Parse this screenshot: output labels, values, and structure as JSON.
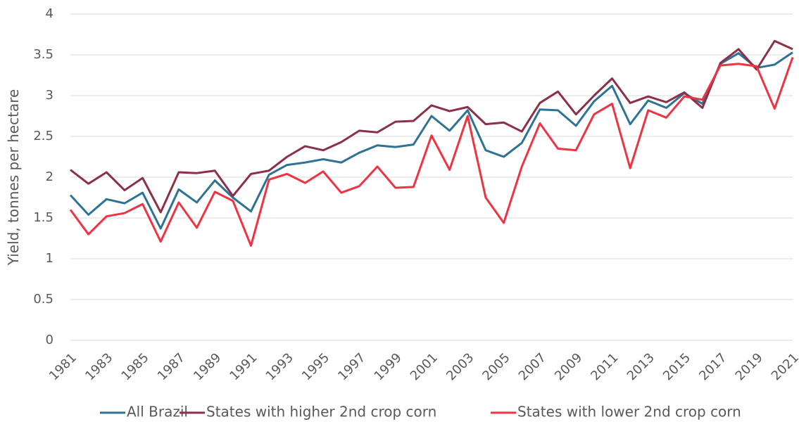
{
  "chart_data": {
    "type": "line",
    "y_label": "Yield, tonnes per hectare",
    "categories": [
      "1981",
      null,
      "1983",
      null,
      "1985",
      null,
      "1987",
      null,
      "1989",
      null,
      "1991",
      null,
      "1993",
      null,
      "1995",
      null,
      "1997",
      null,
      "1999",
      null,
      "2001",
      null,
      "2003",
      null,
      "2005",
      null,
      "2007",
      null,
      "2009",
      null,
      "2011",
      null,
      "2013",
      null,
      "2015",
      null,
      "2017",
      null,
      "2019",
      null,
      "2021"
    ],
    "ylim": [
      0,
      4
    ],
    "yticks": [
      0,
      0.5,
      1,
      1.5,
      2,
      2.5,
      3,
      3.5,
      4
    ],
    "grid": true,
    "legend": "bottom",
    "series": [
      {
        "name": "All Brazil",
        "color": "#2e7394",
        "values": [
          1.78,
          1.54,
          1.73,
          1.68,
          1.81,
          1.37,
          1.85,
          1.69,
          1.96,
          1.75,
          1.58,
          2.03,
          2.15,
          2.18,
          2.22,
          2.18,
          2.3,
          2.39,
          2.37,
          2.4,
          2.75,
          2.57,
          2.82,
          2.33,
          2.25,
          2.42,
          2.83,
          2.82,
          2.63,
          2.93,
          3.12,
          2.65,
          2.94,
          2.85,
          3.03,
          2.9,
          3.39,
          3.52,
          3.34,
          3.38,
          3.53
        ]
      },
      {
        "name": "States with higher 2nd crop corn",
        "color": "#8b3048",
        "values": [
          2.09,
          1.92,
          2.06,
          1.84,
          1.99,
          1.57,
          2.06,
          2.05,
          2.08,
          1.77,
          2.04,
          2.08,
          2.25,
          2.38,
          2.33,
          2.43,
          2.57,
          2.55,
          2.68,
          2.69,
          2.88,
          2.81,
          2.86,
          2.65,
          2.67,
          2.56,
          2.91,
          3.05,
          2.77,
          3.0,
          3.21,
          2.91,
          2.99,
          2.92,
          3.04,
          2.85,
          3.4,
          3.57,
          3.32,
          3.67,
          3.57
        ]
      },
      {
        "name": "States with lower 2nd crop corn",
        "color": "#ee3342",
        "values": [
          1.6,
          1.3,
          1.52,
          1.56,
          1.67,
          1.21,
          1.69,
          1.38,
          1.82,
          1.71,
          1.16,
          1.97,
          2.04,
          1.93,
          2.07,
          1.81,
          1.89,
          2.13,
          1.87,
          1.88,
          2.51,
          2.09,
          2.75,
          1.75,
          1.44,
          2.13,
          2.66,
          2.35,
          2.33,
          2.77,
          2.9,
          2.11,
          2.82,
          2.73,
          2.99,
          2.95,
          3.37,
          3.39,
          3.36,
          2.84,
          3.47
        ]
      }
    ]
  }
}
